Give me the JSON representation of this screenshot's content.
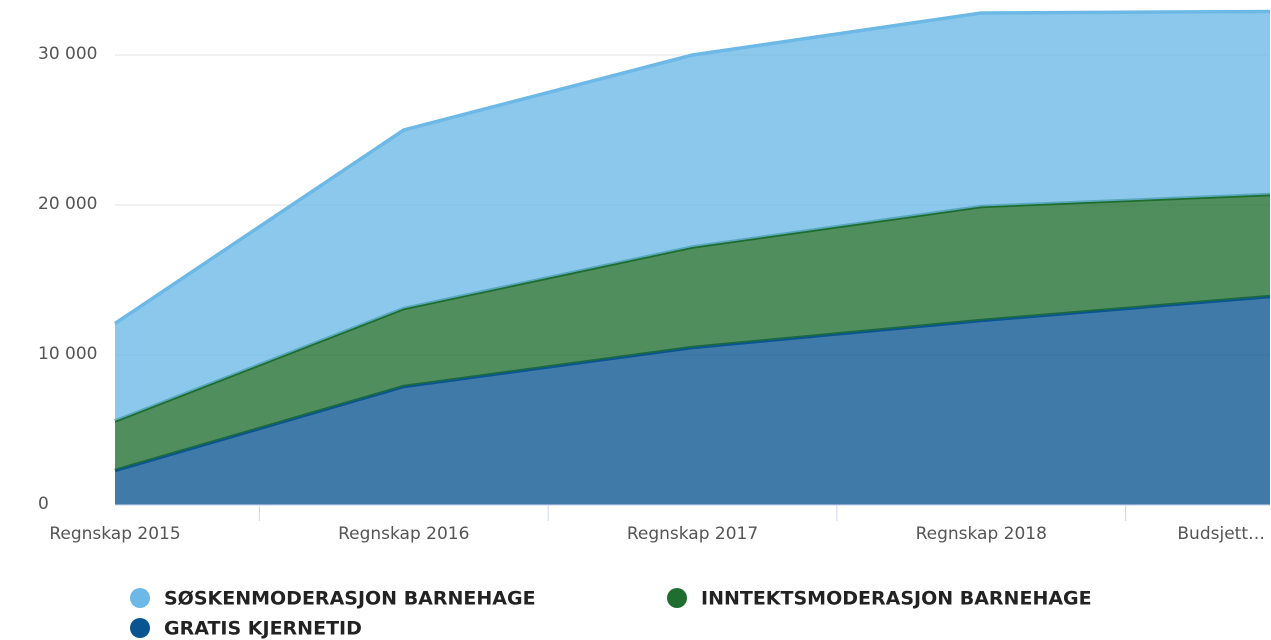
{
  "chart_data": {
    "type": "area",
    "stacked": true,
    "categories": [
      "Regnskap 2015",
      "Regnskap 2016",
      "Regnskap 2017",
      "Regnskap 2018",
      "Budsjett…"
    ],
    "series": [
      {
        "name": "SØSKENMODERASJON BARNEHAGE",
        "color": "#6cb8e6",
        "values": [
          6500,
          11900,
          12800,
          12900,
          12200
        ]
      },
      {
        "name": "INNTEKTSMODERASJON BARNEHAGE",
        "color": "#1f6e2f",
        "values": [
          3300,
          5200,
          6700,
          7600,
          6800
        ]
      },
      {
        "name": "GRATIS KJERNETID",
        "color": "#0a5591",
        "values": [
          2300,
          7900,
          10500,
          12300,
          13900
        ]
      }
    ],
    "ylim": [
      0,
      33000
    ],
    "yticks": [
      0,
      {
        "value": 10000,
        "label": "10 000"
      },
      {
        "value": 20000,
        "label": "20 000"
      },
      {
        "value": 30000,
        "label": "30 000"
      }
    ],
    "grid": true
  }
}
